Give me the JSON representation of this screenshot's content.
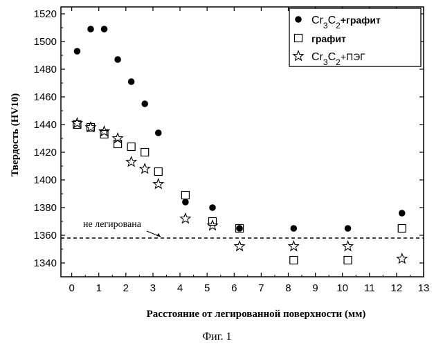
{
  "chart_data": {
    "type": "scatter",
    "xlabel": "Расстояние от легированной поверхности (мм)",
    "ylabel": "Твердость (HV10)",
    "xlim": [
      -0.4,
      13
    ],
    "ylim": [
      1330,
      1525
    ],
    "x_ticks": [
      0,
      1,
      2,
      3,
      4,
      5,
      6,
      7,
      8,
      9,
      10,
      11,
      12,
      13
    ],
    "y_ticks": [
      1340,
      1360,
      1380,
      1400,
      1420,
      1440,
      1460,
      1480,
      1500,
      1520
    ],
    "legend_position": "top-right",
    "series": [
      {
        "name": "Cr3C2+графит",
        "name_parts": {
          "base": "Cr",
          "sub1": "3",
          "mid": "C",
          "sub2": "2",
          "rest": "+графит"
        },
        "marker": "filled-circle",
        "x": [
          0.2,
          0.7,
          1.2,
          1.7,
          2.2,
          2.7,
          3.2,
          4.2,
          5.2,
          6.2,
          8.2,
          10.2,
          12.2
        ],
        "y": [
          1493,
          1509,
          1509,
          1487,
          1471,
          1455,
          1434,
          1384,
          1380,
          1365,
          1365,
          1365,
          1376
        ]
      },
      {
        "name": "графит",
        "marker": "open-square",
        "x": [
          0.2,
          0.7,
          1.2,
          1.7,
          2.2,
          2.7,
          3.2,
          4.2,
          5.2,
          6.2,
          8.2,
          10.2,
          12.2
        ],
        "y": [
          1440,
          1438,
          1433,
          1426,
          1424,
          1420,
          1406,
          1389,
          1370,
          1365,
          1342,
          1342,
          1365
        ]
      },
      {
        "name": "Cr3C2+ПЭГ",
        "name_parts": {
          "base": "Cr",
          "sub1": "3",
          "mid": "C",
          "sub2": "2",
          "rest": "+ПЭГ"
        },
        "marker": "open-star",
        "x": [
          0.2,
          0.7,
          1.2,
          1.7,
          2.2,
          2.7,
          3.2,
          4.2,
          5.2,
          6.2,
          8.2,
          10.2,
          12.2
        ],
        "y": [
          1441,
          1438,
          1435,
          1430,
          1413,
          1408,
          1397,
          1372,
          1367,
          1352,
          1352,
          1352,
          1343
        ]
      }
    ],
    "reference_line": {
      "y": 1358,
      "style": "dashed",
      "label": "не легирована"
    }
  },
  "caption": "Фиг. 1"
}
